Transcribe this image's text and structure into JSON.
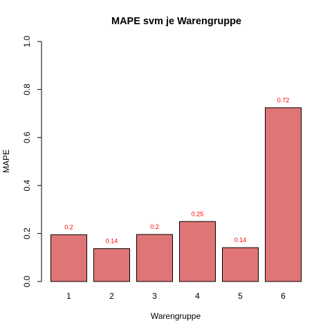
{
  "chart_data": {
    "type": "bar",
    "title": "MAPE svm je Warengruppe",
    "xlabel": "Warengruppe",
    "ylabel": "MAPE",
    "categories": [
      "1",
      "2",
      "3",
      "4",
      "5",
      "6"
    ],
    "values": [
      0.195,
      0.137,
      0.196,
      0.25,
      0.141,
      0.724
    ],
    "data_labels": [
      "0.2",
      "0.14",
      "0.2",
      "0.25",
      "0.14",
      "0.72"
    ],
    "ylim": [
      0,
      1
    ],
    "yticks": [
      "0.0",
      "0.2",
      "0.4",
      "0.6",
      "0.8",
      "1.0"
    ],
    "bar_color": "#e07575",
    "label_color": "#ff0000",
    "grid": false,
    "legend": "none"
  }
}
